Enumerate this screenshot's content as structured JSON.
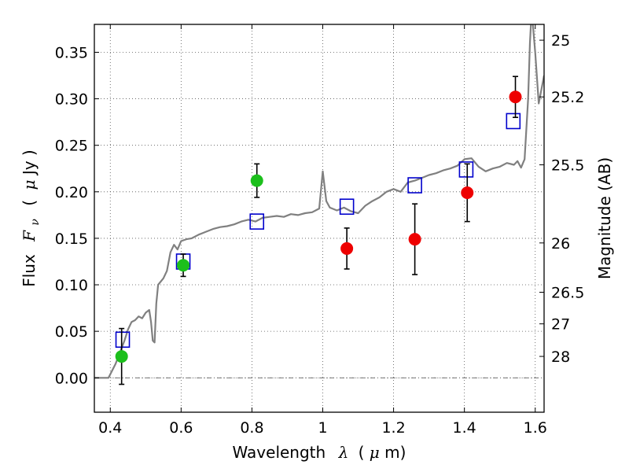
{
  "chart_data": {
    "type": "scatter",
    "xlabel_text": "Wavelength",
    "xlabel_symbol": "λ",
    "xlabel_unit_open": "(",
    "xlabel_unit_mu": "μ",
    "xlabel_unit_rest": "m)",
    "ylabel_text": "Flux",
    "ylabel_symbol": "F",
    "ylabel_sub": "ν",
    "ylabel_unit_open": "(",
    "ylabel_unit_mu": "μ",
    "ylabel_unit_rest": "Jy )",
    "y2label": "Magnitude (AB)",
    "xlim": [
      0.355,
      1.625
    ],
    "ylim": [
      -0.037,
      0.38
    ],
    "grid": true,
    "zero_line": true,
    "x_ticks": [
      0.4,
      0.6,
      0.8,
      1.0,
      1.2,
      1.4,
      1.6
    ],
    "x_tick_labels": [
      "0.4",
      "0.6",
      "0.8",
      "1",
      "1.2",
      "1.4",
      "1.6"
    ],
    "y_ticks": [
      0.0,
      0.05,
      0.1,
      0.15,
      0.2,
      0.25,
      0.3,
      0.35
    ],
    "y_tick_labels": [
      "0.00",
      "0.05",
      "0.10",
      "0.15",
      "0.20",
      "0.25",
      "0.30",
      "0.35"
    ],
    "mag_ticks": [
      {
        "label": "25",
        "flux": 0.363
      },
      {
        "label": "25.2",
        "flux": 0.302
      },
      {
        "label": "25.5",
        "flux": 0.229
      },
      {
        "label": "26",
        "flux": 0.145
      },
      {
        "label": "26.5",
        "flux": 0.092
      },
      {
        "label": "27",
        "flux": 0.058
      },
      {
        "label": "28",
        "flux": 0.023
      }
    ],
    "colors": {
      "green": "#1cbf1c",
      "red": "#ee0000",
      "square": "#0000cc",
      "model": "#808080",
      "grid": "#555555"
    },
    "series": [
      {
        "marker": "circle",
        "color": "green",
        "points": [
          {
            "x": 0.432,
            "y": 0.023,
            "err": 0.03
          },
          {
            "x": 0.606,
            "y": 0.121,
            "err": 0.012
          },
          {
            "x": 0.814,
            "y": 0.212,
            "err": 0.018
          }
        ]
      },
      {
        "marker": "circle",
        "color": "red",
        "points": [
          {
            "x": 1.068,
            "y": 0.139,
            "err": 0.022
          },
          {
            "x": 1.26,
            "y": 0.149,
            "err": 0.038
          },
          {
            "x": 1.408,
            "y": 0.199,
            "err": 0.031
          },
          {
            "x": 1.544,
            "y": 0.302,
            "err": 0.022
          }
        ]
      },
      {
        "marker": "square",
        "color": "square",
        "points": [
          {
            "x": 0.435,
            "y": 0.041
          },
          {
            "x": 0.606,
            "y": 0.125
          },
          {
            "x": 0.814,
            "y": 0.168
          },
          {
            "x": 1.068,
            "y": 0.184
          },
          {
            "x": 1.26,
            "y": 0.207
          },
          {
            "x": 1.405,
            "y": 0.224
          },
          {
            "x": 1.538,
            "y": 0.276
          }
        ]
      },
      {
        "marker": "line",
        "color": "model",
        "points": [
          {
            "x": 0.355,
            "y": 0.0
          },
          {
            "x": 0.395,
            "y": 0.0
          },
          {
            "x": 0.415,
            "y": 0.015
          },
          {
            "x": 0.43,
            "y": 0.03
          },
          {
            "x": 0.44,
            "y": 0.04
          },
          {
            "x": 0.45,
            "y": 0.052
          },
          {
            "x": 0.46,
            "y": 0.06
          },
          {
            "x": 0.47,
            "y": 0.062
          },
          {
            "x": 0.48,
            "y": 0.066
          },
          {
            "x": 0.49,
            "y": 0.064
          },
          {
            "x": 0.5,
            "y": 0.07
          },
          {
            "x": 0.51,
            "y": 0.073
          },
          {
            "x": 0.515,
            "y": 0.06
          },
          {
            "x": 0.52,
            "y": 0.04
          },
          {
            "x": 0.525,
            "y": 0.038
          },
          {
            "x": 0.53,
            "y": 0.08
          },
          {
            "x": 0.535,
            "y": 0.1
          },
          {
            "x": 0.55,
            "y": 0.107
          },
          {
            "x": 0.56,
            "y": 0.115
          },
          {
            "x": 0.57,
            "y": 0.135
          },
          {
            "x": 0.58,
            "y": 0.143
          },
          {
            "x": 0.59,
            "y": 0.138
          },
          {
            "x": 0.6,
            "y": 0.147
          },
          {
            "x": 0.615,
            "y": 0.149
          },
          {
            "x": 0.63,
            "y": 0.15
          },
          {
            "x": 0.65,
            "y": 0.154
          },
          {
            "x": 0.67,
            "y": 0.157
          },
          {
            "x": 0.69,
            "y": 0.16
          },
          {
            "x": 0.71,
            "y": 0.162
          },
          {
            "x": 0.73,
            "y": 0.163
          },
          {
            "x": 0.75,
            "y": 0.165
          },
          {
            "x": 0.77,
            "y": 0.168
          },
          {
            "x": 0.79,
            "y": 0.17
          },
          {
            "x": 0.81,
            "y": 0.168
          },
          {
            "x": 0.83,
            "y": 0.172
          },
          {
            "x": 0.85,
            "y": 0.173
          },
          {
            "x": 0.87,
            "y": 0.174
          },
          {
            "x": 0.89,
            "y": 0.173
          },
          {
            "x": 0.91,
            "y": 0.176
          },
          {
            "x": 0.93,
            "y": 0.175
          },
          {
            "x": 0.95,
            "y": 0.177
          },
          {
            "x": 0.97,
            "y": 0.178
          },
          {
            "x": 0.99,
            "y": 0.182
          },
          {
            "x": 1.0,
            "y": 0.222
          },
          {
            "x": 1.01,
            "y": 0.19
          },
          {
            "x": 1.02,
            "y": 0.183
          },
          {
            "x": 1.04,
            "y": 0.18
          },
          {
            "x": 1.06,
            "y": 0.183
          },
          {
            "x": 1.08,
            "y": 0.179
          },
          {
            "x": 1.1,
            "y": 0.177
          },
          {
            "x": 1.12,
            "y": 0.185
          },
          {
            "x": 1.14,
            "y": 0.19
          },
          {
            "x": 1.16,
            "y": 0.194
          },
          {
            "x": 1.18,
            "y": 0.2
          },
          {
            "x": 1.2,
            "y": 0.203
          },
          {
            "x": 1.22,
            "y": 0.2
          },
          {
            "x": 1.24,
            "y": 0.21
          },
          {
            "x": 1.26,
            "y": 0.212
          },
          {
            "x": 1.28,
            "y": 0.215
          },
          {
            "x": 1.3,
            "y": 0.218
          },
          {
            "x": 1.32,
            "y": 0.22
          },
          {
            "x": 1.34,
            "y": 0.223
          },
          {
            "x": 1.36,
            "y": 0.225
          },
          {
            "x": 1.38,
            "y": 0.228
          },
          {
            "x": 1.4,
            "y": 0.235
          },
          {
            "x": 1.42,
            "y": 0.236
          },
          {
            "x": 1.44,
            "y": 0.227
          },
          {
            "x": 1.46,
            "y": 0.222
          },
          {
            "x": 1.48,
            "y": 0.225
          },
          {
            "x": 1.5,
            "y": 0.227
          },
          {
            "x": 1.52,
            "y": 0.231
          },
          {
            "x": 1.54,
            "y": 0.229
          },
          {
            "x": 1.55,
            "y": 0.233
          },
          {
            "x": 1.56,
            "y": 0.226
          },
          {
            "x": 1.57,
            "y": 0.235
          },
          {
            "x": 1.58,
            "y": 0.3
          },
          {
            "x": 1.585,
            "y": 0.36
          },
          {
            "x": 1.59,
            "y": 0.395
          },
          {
            "x": 1.6,
            "y": 0.35
          },
          {
            "x": 1.61,
            "y": 0.295
          },
          {
            "x": 1.625,
            "y": 0.325
          }
        ]
      }
    ]
  }
}
